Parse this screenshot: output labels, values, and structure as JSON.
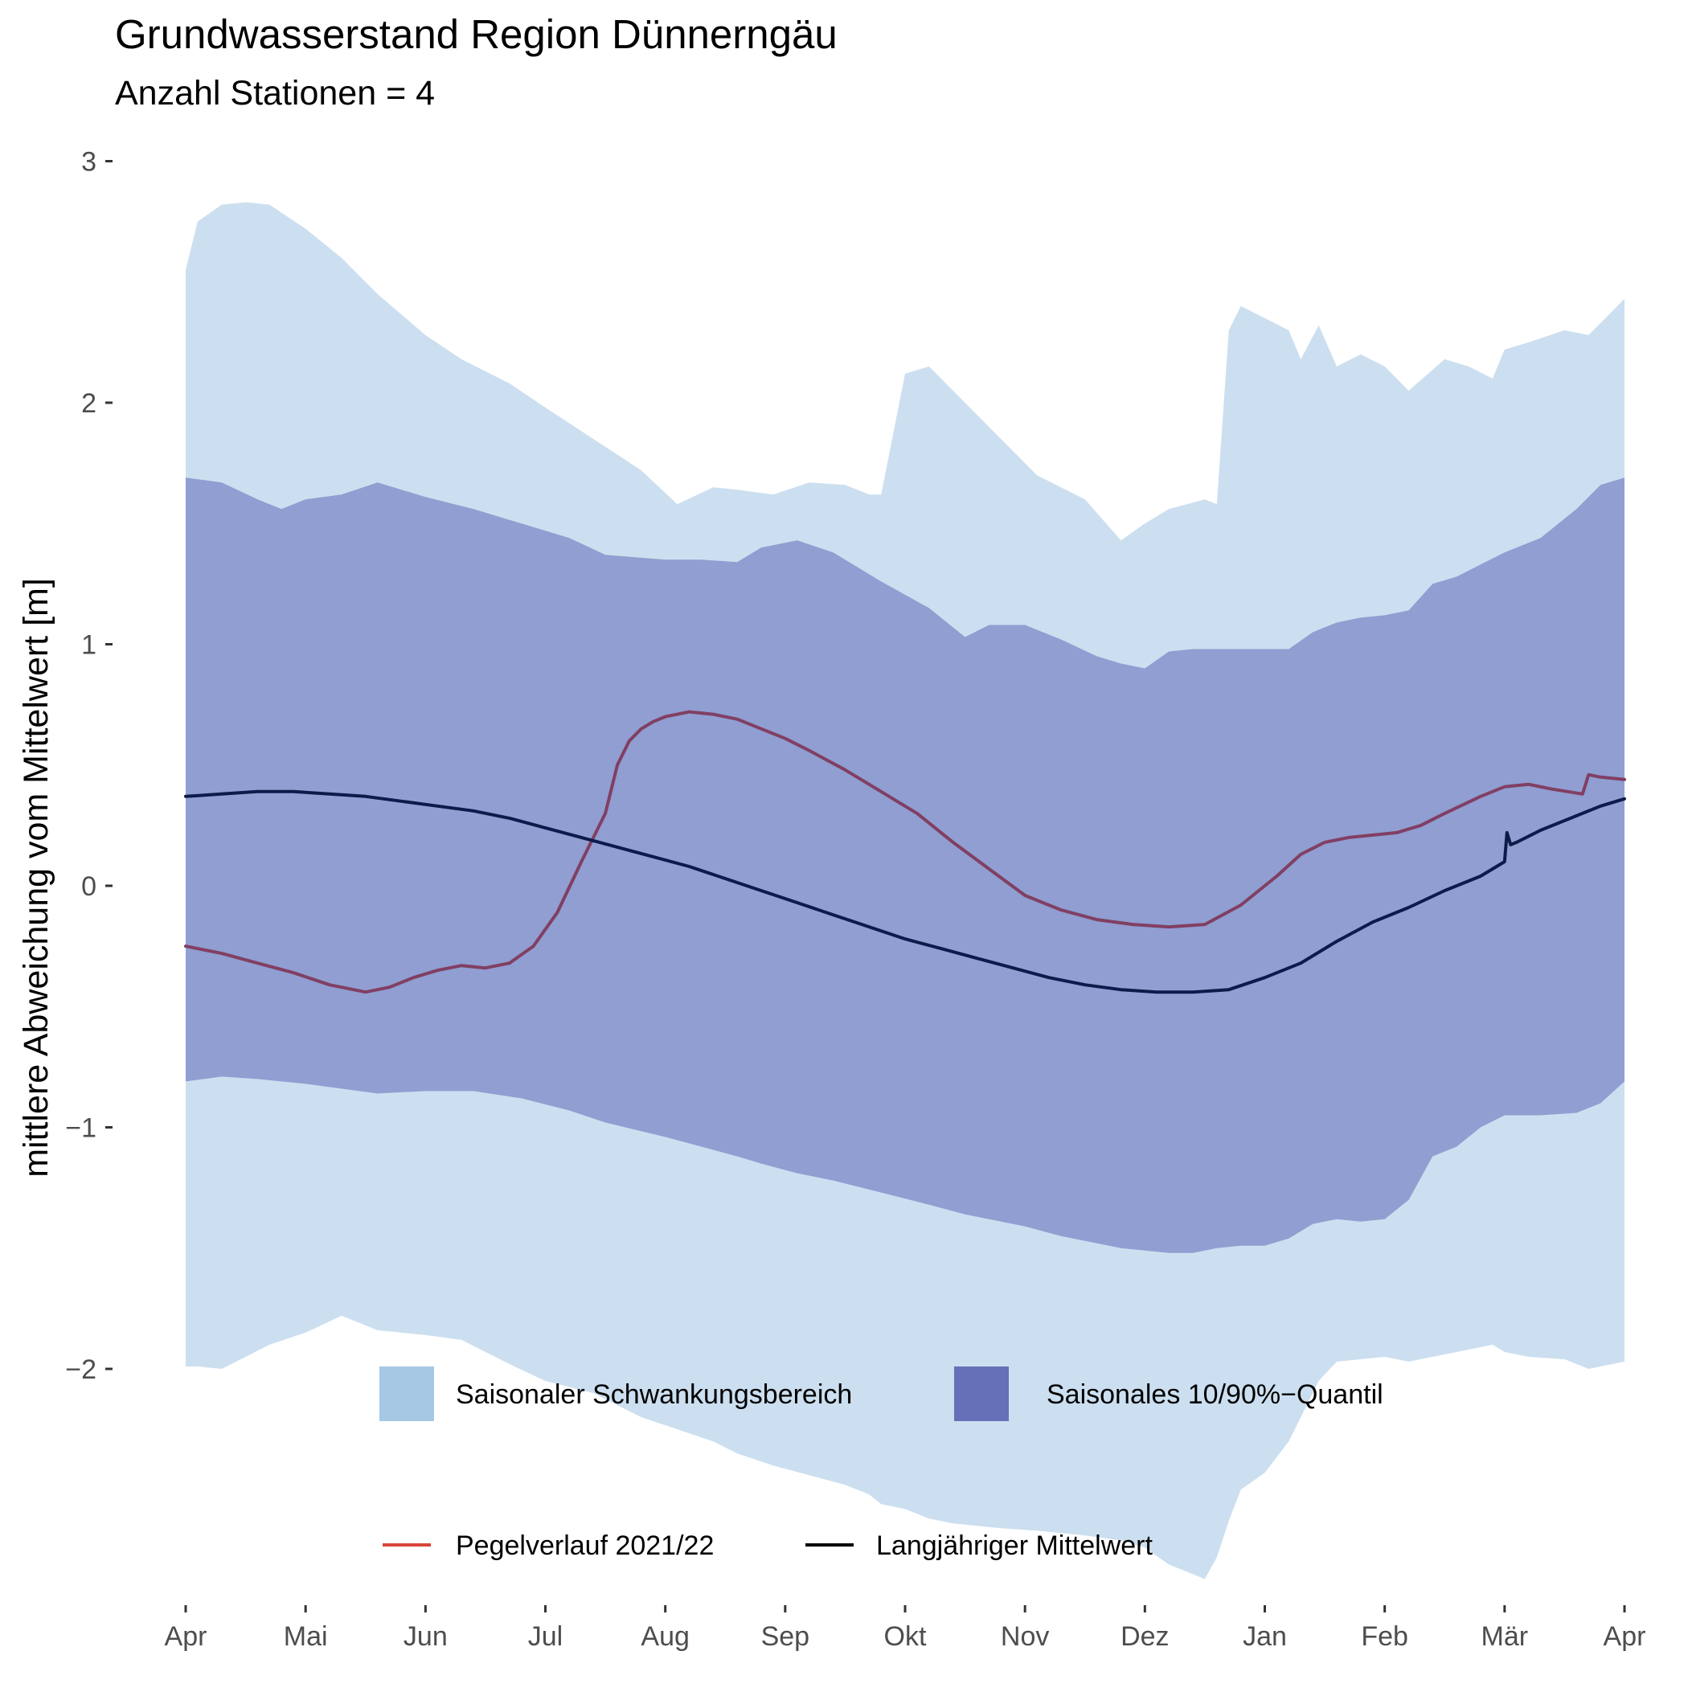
{
  "chart_data": {
    "type": "area",
    "title": "Grundwasserstand Region Dünnerngäu",
    "subtitle": "Anzahl Stationen = 4",
    "ylabel": "mittlere Abweichung vom Mittelwert [m]",
    "xlabel": "",
    "ylim": [
      -3.0,
      3.0
    ],
    "yticks": [
      3,
      2,
      1,
      0,
      -1,
      -2
    ],
    "ytick_labels": [
      "3",
      "2",
      "1",
      "0",
      "−1",
      "−2"
    ],
    "x_unit": "months since April",
    "xlim": [
      0,
      12
    ],
    "xticks": [
      0,
      1,
      2,
      3,
      4,
      5,
      6,
      7,
      8,
      9,
      10,
      11,
      12
    ],
    "xtick_labels": [
      "Apr",
      "Mai",
      "Jun",
      "Jul",
      "Aug",
      "Sep",
      "Okt",
      "Nov",
      "Dez",
      "Jan",
      "Feb",
      "Mär",
      "Apr"
    ],
    "grid": false,
    "legend": {
      "position": "bottom",
      "fill_entries": [
        {
          "label": "Saisonaler Schwankungsbereich",
          "color": "#a6c8e4"
        },
        {
          "label": "Saisonales 10/90%−Quantil",
          "color": "#6670b8"
        }
      ],
      "line_entries": [
        {
          "label": "Pegelverlauf  2021/22",
          "color": "#d9453a"
        },
        {
          "label": "Langjähriger Mittelwert",
          "color": "#000000"
        }
      ]
    },
    "series": [
      {
        "name": "Saisonaler Schwankungsbereich",
        "kind": "band",
        "color": "#ccdff0",
        "x": [
          0,
          0.1,
          0.3,
          0.5,
          0.7,
          1.0,
          1.3,
          1.6,
          2.0,
          2.3,
          2.7,
          3.0,
          3.4,
          3.8,
          4.1,
          4.4,
          4.6,
          4.9,
          5.2,
          5.5,
          5.7,
          5.8,
          6.0,
          6.2,
          6.4,
          6.8,
          7.1,
          7.5,
          7.8,
          8.0,
          8.2,
          8.5,
          8.6,
          8.7,
          8.8,
          9.0,
          9.2,
          9.3,
          9.45,
          9.6,
          9.8,
          10.0,
          10.2,
          10.5,
          10.7,
          10.9,
          11.0,
          11.2,
          11.5,
          11.7,
          12.0
        ],
        "upper": [
          2.55,
          2.75,
          2.82,
          2.83,
          2.82,
          2.72,
          2.6,
          2.45,
          2.28,
          2.18,
          2.08,
          1.98,
          1.85,
          1.72,
          1.58,
          1.65,
          1.64,
          1.62,
          1.67,
          1.66,
          1.62,
          1.62,
          2.12,
          2.15,
          2.05,
          1.85,
          1.7,
          1.6,
          1.43,
          1.5,
          1.56,
          1.6,
          1.58,
          2.3,
          2.4,
          2.35,
          2.3,
          2.18,
          2.32,
          2.15,
          2.2,
          2.15,
          2.05,
          2.18,
          2.15,
          2.1,
          2.22,
          2.25,
          2.3,
          2.28,
          2.43
        ],
        "lower": [
          -1.99,
          -1.99,
          -2.0,
          -1.95,
          -1.9,
          -1.85,
          -1.78,
          -1.84,
          -1.86,
          -1.88,
          -1.98,
          -2.05,
          -2.1,
          -2.2,
          -2.25,
          -2.3,
          -2.35,
          -2.4,
          -2.44,
          -2.48,
          -2.52,
          -2.56,
          -2.58,
          -2.62,
          -2.64,
          -2.66,
          -2.67,
          -2.69,
          -2.71,
          -2.74,
          -2.81,
          -2.87,
          -2.78,
          -2.63,
          -2.5,
          -2.43,
          -2.3,
          -2.2,
          -2.05,
          -1.97,
          -1.96,
          -1.95,
          -1.97,
          -1.94,
          -1.92,
          -1.9,
          -1.93,
          -1.95,
          -1.96,
          -2.0,
          -1.97
        ]
      },
      {
        "name": "Saisonales 10/90%−Quantil",
        "kind": "band",
        "color": "#909ed1",
        "x": [
          0,
          0.3,
          0.6,
          0.8,
          1.0,
          1.3,
          1.6,
          2.0,
          2.4,
          2.8,
          3.2,
          3.5,
          4.0,
          4.3,
          4.6,
          4.8,
          5.1,
          5.4,
          5.8,
          6.2,
          6.5,
          6.7,
          7.0,
          7.3,
          7.6,
          7.8,
          8.0,
          8.2,
          8.4,
          8.6,
          8.8,
          9.0,
          9.2,
          9.4,
          9.6,
          9.8,
          10.0,
          10.2,
          10.4,
          10.6,
          10.8,
          11.0,
          11.3,
          11.6,
          11.8,
          12.0
        ],
        "upper": [
          1.69,
          1.67,
          1.6,
          1.56,
          1.6,
          1.62,
          1.67,
          1.61,
          1.56,
          1.5,
          1.44,
          1.37,
          1.35,
          1.35,
          1.34,
          1.4,
          1.43,
          1.38,
          1.26,
          1.15,
          1.03,
          1.08,
          1.08,
          1.02,
          0.95,
          0.92,
          0.9,
          0.97,
          0.98,
          0.98,
          0.98,
          0.98,
          0.98,
          1.05,
          1.09,
          1.11,
          1.12,
          1.14,
          1.25,
          1.28,
          1.33,
          1.38,
          1.44,
          1.56,
          1.66,
          1.69
        ],
        "lower": [
          -0.81,
          -0.79,
          -0.8,
          -0.81,
          -0.82,
          -0.84,
          -0.86,
          -0.85,
          -0.85,
          -0.88,
          -0.93,
          -0.98,
          -1.04,
          -1.08,
          -1.12,
          -1.15,
          -1.19,
          -1.22,
          -1.27,
          -1.32,
          -1.36,
          -1.38,
          -1.41,
          -1.45,
          -1.48,
          -1.5,
          -1.51,
          -1.52,
          -1.52,
          -1.5,
          -1.49,
          -1.49,
          -1.46,
          -1.4,
          -1.38,
          -1.39,
          -1.38,
          -1.3,
          -1.12,
          -1.08,
          -1.0,
          -0.95,
          -0.95,
          -0.94,
          -0.9,
          -0.81
        ]
      },
      {
        "name": "Pegelverlauf  2021/22",
        "kind": "line",
        "color": "#813f63",
        "x": [
          0,
          0.3,
          0.6,
          0.9,
          1.2,
          1.5,
          1.7,
          1.9,
          2.1,
          2.3,
          2.5,
          2.7,
          2.9,
          3.0,
          3.1,
          3.3,
          3.5,
          3.6,
          3.7,
          3.8,
          3.9,
          4.0,
          4.2,
          4.4,
          4.6,
          4.8,
          5.0,
          5.2,
          5.5,
          5.8,
          6.1,
          6.4,
          6.7,
          7.0,
          7.3,
          7.6,
          7.9,
          8.2,
          8.5,
          8.8,
          9.0,
          9.1,
          9.3,
          9.5,
          9.7,
          9.9,
          10.1,
          10.3,
          10.5,
          10.8,
          11.0,
          11.2,
          11.4,
          11.65,
          11.7,
          11.8,
          12.0
        ],
        "values": [
          -0.25,
          -0.28,
          -0.32,
          -0.36,
          -0.41,
          -0.44,
          -0.42,
          -0.38,
          -0.35,
          -0.33,
          -0.34,
          -0.32,
          -0.25,
          -0.18,
          -0.11,
          0.1,
          0.3,
          0.5,
          0.6,
          0.65,
          0.68,
          0.7,
          0.72,
          0.71,
          0.69,
          0.65,
          0.61,
          0.56,
          0.48,
          0.39,
          0.3,
          0.18,
          0.07,
          -0.04,
          -0.1,
          -0.14,
          -0.16,
          -0.17,
          -0.16,
          -0.08,
          0.0,
          0.04,
          0.13,
          0.18,
          0.2,
          0.21,
          0.22,
          0.25,
          0.3,
          0.37,
          0.41,
          0.42,
          0.4,
          0.38,
          0.46,
          0.45,
          0.44
        ]
      },
      {
        "name": "Langjähriger Mittelwert",
        "kind": "line",
        "color": "#0d1b4a",
        "x": [
          0,
          0.3,
          0.6,
          0.9,
          1.2,
          1.5,
          1.8,
          2.1,
          2.4,
          2.7,
          3.0,
          3.3,
          3.6,
          3.9,
          4.2,
          4.5,
          4.8,
          5.1,
          5.4,
          5.7,
          6.0,
          6.3,
          6.6,
          6.9,
          7.2,
          7.5,
          7.8,
          8.1,
          8.4,
          8.7,
          9.0,
          9.3,
          9.6,
          9.9,
          10.2,
          10.5,
          10.8,
          11.0,
          11.02,
          11.05,
          11.1,
          11.3,
          11.6,
          11.8,
          12.0
        ],
        "values": [
          0.37,
          0.38,
          0.39,
          0.39,
          0.38,
          0.37,
          0.35,
          0.33,
          0.31,
          0.28,
          0.24,
          0.2,
          0.16,
          0.12,
          0.08,
          0.03,
          -0.02,
          -0.07,
          -0.12,
          -0.17,
          -0.22,
          -0.26,
          -0.3,
          -0.34,
          -0.38,
          -0.41,
          -0.43,
          -0.44,
          -0.44,
          -0.43,
          -0.38,
          -0.32,
          -0.23,
          -0.15,
          -0.09,
          -0.02,
          0.04,
          0.1,
          0.22,
          0.17,
          0.18,
          0.23,
          0.29,
          0.33,
          0.36
        ]
      }
    ]
  }
}
